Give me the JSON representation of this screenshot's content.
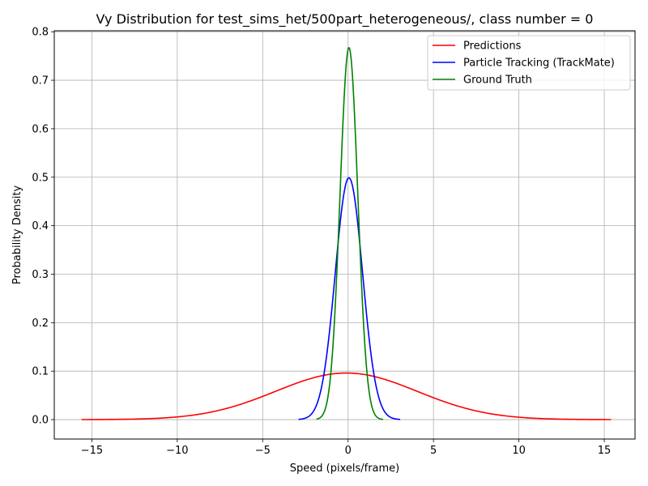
{
  "chart_data": {
    "type": "line",
    "title": "Vy Distribution for test_sims_het/500part_heterogeneous/, class number = 0",
    "xlabel": "Speed (pixels/frame)",
    "ylabel": "Probability Density",
    "xlim": [
      -17.2,
      16.8
    ],
    "ylim": [
      -0.04,
      0.802
    ],
    "xticks": [
      -15,
      -10,
      -5,
      0,
      5,
      10,
      15
    ],
    "xtick_labels": [
      "−15",
      "−10",
      "−5",
      "0",
      "5",
      "10",
      "15"
    ],
    "yticks": [
      0.0,
      0.1,
      0.2,
      0.3,
      0.4,
      0.5,
      0.6,
      0.7,
      0.8
    ],
    "ytick_labels": [
      "0.0",
      "0.1",
      "0.2",
      "0.3",
      "0.4",
      "0.5",
      "0.6",
      "0.7",
      "0.8"
    ],
    "grid": true,
    "legend_position": "top-right",
    "series": [
      {
        "name": "Predictions",
        "color": "#ff0000",
        "mean": -0.1,
        "std": 4.15,
        "x_range": [
          -15.6,
          15.4
        ]
      },
      {
        "name": "Particle Tracking (TrackMate)",
        "color": "#0000ff",
        "mean": 0.05,
        "std": 0.8,
        "x_range": [
          -2.9,
          3.05
        ]
      },
      {
        "name": "Ground Truth",
        "color": "#008000",
        "mean": 0.05,
        "std": 0.52,
        "x_range": [
          -1.85,
          2.05
        ]
      }
    ]
  }
}
